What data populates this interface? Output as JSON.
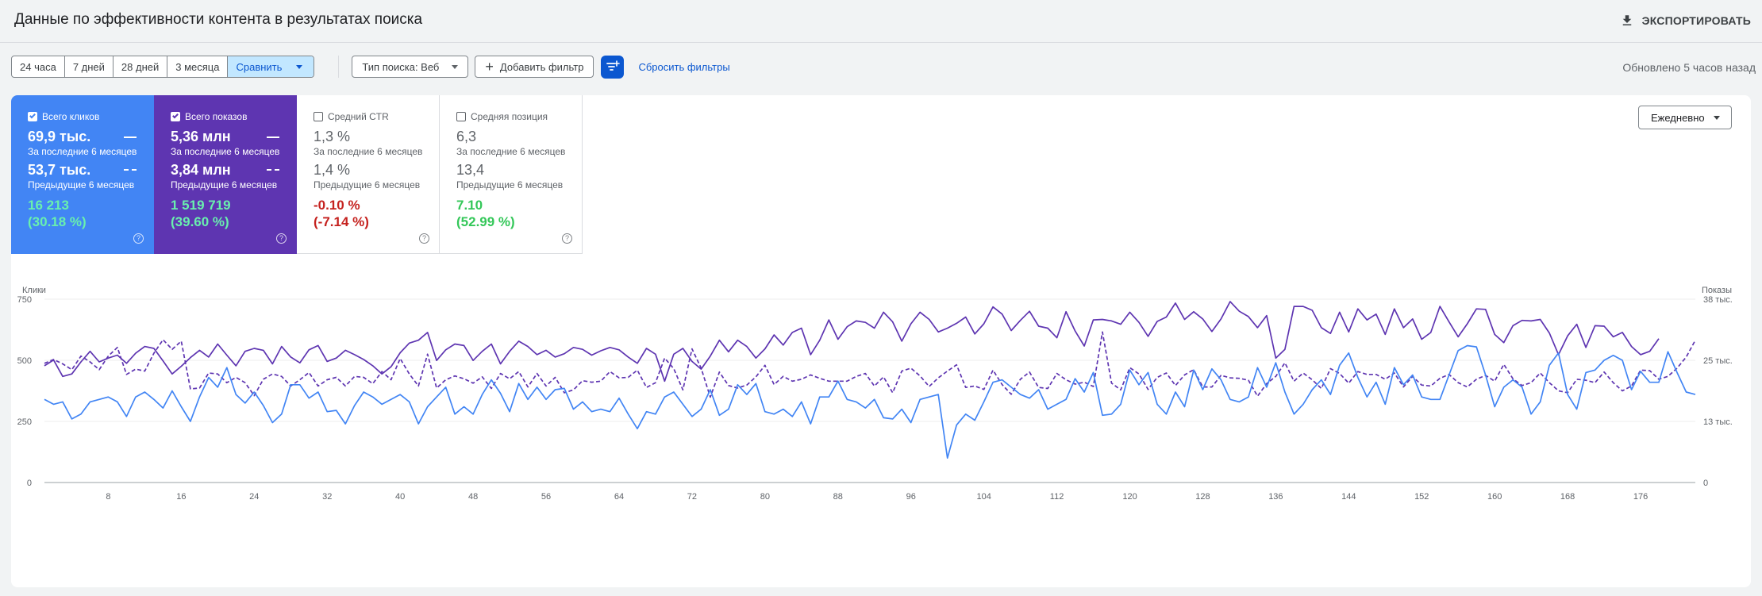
{
  "header": {
    "title": "Данные по эффективности контента в результатах поиска",
    "export_label": "ЭКСПОРТИРОВАТЬ",
    "export_icon": "download-icon"
  },
  "toolbar": {
    "ranges": [
      "24 часа",
      "7 дней",
      "28 дней",
      "3 месяца"
    ],
    "compare_label": "Сравнить",
    "search_type_label": "Тип поиска: Веб",
    "add_filter_label": "Добавить фильтр",
    "reset_filters_label": "Сбросить фильтры",
    "updated_label": "Обновлено 5 часов назад"
  },
  "metrics": [
    {
      "label": "Всего кликов",
      "checked": true,
      "current": "69,9 тыс.",
      "current_period": "За последние 6 месяцев",
      "previous": "53,7 тыс.",
      "previous_period": "Предыдущие 6 месяцев",
      "delta": "16 213",
      "delta_pct": "(30.18 %)",
      "color": "#4285f4"
    },
    {
      "label": "Всего показов",
      "checked": true,
      "current": "5,36 млн",
      "current_period": "За последние 6 месяцев",
      "previous": "3,84 млн",
      "previous_period": "Предыдущие 6 месяцев",
      "delta": "1 519 719",
      "delta_pct": "(39.60 %)",
      "color": "#5e35b1"
    },
    {
      "label": "Средний CTR",
      "checked": false,
      "current": "1,3 %",
      "current_period": "За последние 6 месяцев",
      "previous": "1,4 %",
      "previous_period": "Предыдущие 6 месяцев",
      "delta": "-0.10 %",
      "delta_pct": "(-7.14 %)"
    },
    {
      "label": "Средняя позиция",
      "checked": false,
      "current": "6,3",
      "current_period": "За последние 6 месяцев",
      "previous": "13,4",
      "previous_period": "Предыдущие 6 месяцев",
      "delta": "7.10",
      "delta_pct": "(52.99 %)"
    }
  ],
  "granularity": "Ежедневно",
  "chart_data": {
    "type": "line",
    "ylabel_left": "Клики",
    "ylabel_right": "Показы",
    "ylim_left": [
      0,
      750
    ],
    "ylim_right": [
      0,
      38000
    ],
    "yticks_left": [
      "0",
      "250",
      "500",
      "750"
    ],
    "yticks_right": [
      "0",
      "13 тыс.",
      "25 тыс.",
      "38 тыс."
    ],
    "xlim": [
      1,
      182
    ],
    "xticks": [
      8,
      16,
      24,
      32,
      40,
      48,
      56,
      64,
      72,
      80,
      88,
      96,
      104,
      112,
      120,
      128,
      136,
      144,
      152,
      160,
      168,
      176
    ],
    "grid": true,
    "series": [
      {
        "axis": "right",
        "style": "solid",
        "color": "#5e35b1",
        "values": [
          24200,
          25400,
          22000,
          22500,
          25000,
          27200,
          25000,
          25800,
          26400,
          24700,
          26800,
          28200,
          27800,
          25200,
          22500,
          24100,
          25900,
          27400,
          26000,
          28700,
          26400,
          24200,
          27200,
          27800,
          27400,
          24600,
          28200,
          26000,
          24800,
          27500,
          28400,
          25100,
          25800,
          27400,
          26500,
          25500,
          24200,
          22500,
          24000,
          26900,
          28900,
          29500,
          31100,
          25300,
          27500,
          28700,
          28400,
          25300,
          27200,
          28700,
          24600,
          27200,
          29300,
          28200,
          26500,
          27400,
          26000,
          26700,
          28000,
          27600,
          26400,
          27300,
          28000,
          27500,
          26000,
          24700,
          27800,
          26600,
          21000,
          26600,
          27800,
          25100,
          23500,
          26200,
          29500,
          27100,
          29500,
          28200,
          25800,
          27700,
          30600,
          28500,
          31100,
          32000,
          26500,
          29500,
          33700,
          29700,
          32300,
          33500,
          33200,
          32000,
          35300,
          33300,
          29300,
          32900,
          35300,
          33800,
          31200,
          32000,
          33000,
          34300,
          30800,
          32900,
          36400,
          34900,
          31500,
          33600,
          35500,
          32400,
          32000,
          30000,
          35400,
          31400,
          28300,
          33700,
          33800,
          33500,
          32800,
          35300,
          33200,
          30300,
          33400,
          34300,
          37200,
          33800,
          35400,
          33900,
          31300,
          33900,
          37500,
          35500,
          34400,
          32100,
          34600,
          25800,
          27600,
          36500,
          36500,
          35700,
          32100,
          30900,
          35300,
          31200,
          36000,
          33700,
          34900,
          30700,
          36000,
          32100,
          33900,
          29700,
          31100,
          36500,
          33300,
          30200,
          32900,
          36000,
          35900,
          30700,
          29000,
          32500,
          33600,
          33500,
          33800,
          31000,
          26500,
          30400,
          32800,
          28000,
          32500,
          32400,
          30200,
          31100,
          28200,
          26500,
          27200,
          29800
        ]
      },
      {
        "axis": "right",
        "style": "dashed",
        "color": "#5e35b1",
        "values": [
          24700,
          25500,
          24600,
          23400,
          26200,
          25000,
          23400,
          26200,
          28000,
          22400,
          23500,
          23100,
          26800,
          29600,
          27600,
          29300,
          19400,
          19600,
          22700,
          22500,
          20700,
          21800,
          20700,
          18000,
          21400,
          22500,
          22000,
          20000,
          21300,
          22800,
          20000,
          21300,
          21800,
          20000,
          22000,
          21800,
          20500,
          23000,
          21300,
          25700,
          22500,
          20000,
          26600,
          19600,
          21300,
          22100,
          21500,
          20600,
          21900,
          19500,
          22600,
          21500,
          23000,
          19800,
          22600,
          20000,
          21800,
          18600,
          19200,
          21100,
          20800,
          21000,
          23000,
          21700,
          21800,
          23300,
          19700,
          20700,
          25800,
          23600,
          19200,
          27700,
          23700,
          17700,
          22900,
          20100,
          19600,
          20200,
          21900,
          24300,
          20300,
          22000,
          21000,
          21400,
          22300,
          21600,
          21000,
          21000,
          21000,
          22000,
          22600,
          20000,
          21900,
          18600,
          23100,
          23700,
          22100,
          19900,
          21700,
          23100,
          24400,
          19700,
          20000,
          19300,
          23300,
          20300,
          18300,
          21400,
          22900,
          19700,
          19500,
          22600,
          21300,
          20400,
          20800,
          19900,
          31200,
          20600,
          19200,
          23800,
          22500,
          19300,
          21800,
          22700,
          20100,
          22300,
          23400,
          19800,
          19800,
          22200,
          21700,
          21600,
          21200,
          17900,
          20500,
          22000,
          24800,
          21000,
          22700,
          21300,
          19500,
          23600,
          22600,
          20600,
          23000,
          22400,
          22400,
          21400,
          22700,
          19800,
          22000,
          20200,
          20000,
          21600,
          22400,
          20700,
          19800,
          21400,
          22200,
          21000,
          24500,
          21500,
          20100,
          20700,
          22700,
          20700,
          19000,
          18600,
          21400,
          21200,
          20700,
          22900,
          20700,
          19000,
          20000,
          23300,
          23200,
          21400,
          22000,
          23700,
          26000,
          29500
        ]
      },
      {
        "axis": "left",
        "style": "solid",
        "color": "#4285f4",
        "values": [
          340,
          320,
          330,
          260,
          280,
          330,
          340,
          350,
          330,
          270,
          350,
          370,
          340,
          305,
          375,
          310,
          250,
          350,
          430,
          390,
          470,
          360,
          325,
          370,
          315,
          245,
          280,
          400,
          400,
          345,
          370,
          290,
          295,
          240,
          315,
          370,
          350,
          320,
          340,
          360,
          330,
          240,
          310,
          350,
          390,
          280,
          310,
          280,
          360,
          420,
          365,
          290,
          405,
          340,
          390,
          340,
          380,
          385,
          300,
          330,
          290,
          300,
          290,
          345,
          280,
          220,
          290,
          280,
          350,
          370,
          320,
          270,
          300,
          380,
          275,
          300,
          400,
          360,
          405,
          290,
          280,
          300,
          270,
          330,
          240,
          350,
          350,
          415,
          340,
          330,
          305,
          340,
          265,
          260,
          300,
          245,
          340,
          350,
          360,
          100,
          235,
          280,
          255,
          330,
          410,
          420,
          390,
          360,
          345,
          380,
          300,
          320,
          340,
          425,
          370,
          450,
          275,
          280,
          320,
          460,
          400,
          450,
          320,
          280,
          370,
          310,
          460,
          380,
          465,
          420,
          340,
          330,
          350,
          470,
          390,
          490,
          370,
          280,
          320,
          380,
          420,
          360,
          480,
          530,
          430,
          350,
          410,
          320,
          470,
          400,
          440,
          350,
          340,
          340,
          440,
          540,
          560,
          555,
          440,
          310,
          390,
          420,
          390,
          280,
          330,
          480,
          530,
          360,
          300,
          450,
          460,
          500,
          520,
          500,
          380,
          455,
          410,
          410,
          535,
          450,
          370,
          360
        ]
      }
    ]
  }
}
